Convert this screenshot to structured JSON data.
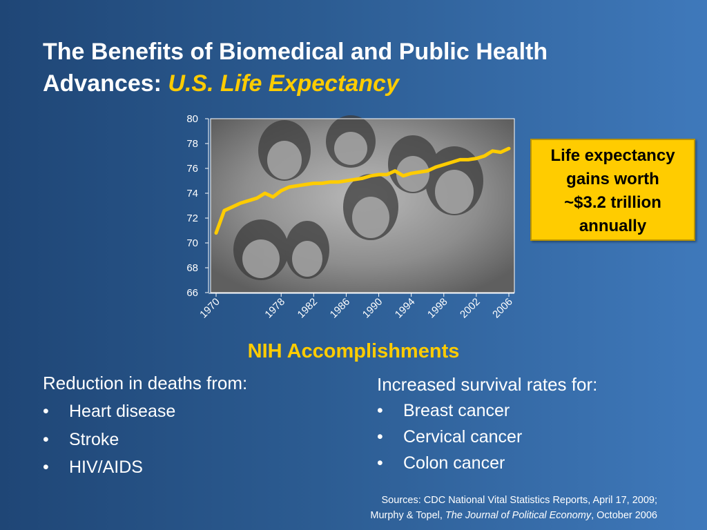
{
  "slide": {
    "title_line1": "The Benefits of Biomedical and Public Health",
    "title_line2_prefix": "Advances: ",
    "title_line2_highlight": "U.S. Life Expectancy"
  },
  "chart_data": {
    "type": "line",
    "title": "",
    "xlabel": "",
    "ylabel": "",
    "xlim": [
      1970,
      2006
    ],
    "ylim": [
      66,
      80
    ],
    "x_ticks": [
      "1970",
      "1978",
      "1982",
      "1986",
      "1990",
      "1994",
      "1998",
      "2002",
      "2006"
    ],
    "y_ticks": [
      "66",
      "68",
      "70",
      "72",
      "74",
      "76",
      "78",
      "80"
    ],
    "grid": false,
    "line_color": "#ffcc00",
    "background": "photograph of a smiling multigenerational family (grayscale)",
    "series": [
      {
        "name": "",
        "x": [
          1970,
          1971,
          1972,
          1973,
          1974,
          1975,
          1976,
          1977,
          1978,
          1979,
          1980,
          1981,
          1982,
          1983,
          1984,
          1985,
          1986,
          1987,
          1988,
          1989,
          1990,
          1991,
          1992,
          1993,
          1994,
          1995,
          1996,
          1997,
          1998,
          1999,
          2000,
          2001,
          2002,
          2003,
          2004,
          2005,
          2006
        ],
        "values": [
          70.8,
          72.6,
          72.9,
          73.2,
          73.4,
          73.6,
          74.0,
          73.7,
          74.2,
          74.5,
          74.6,
          74.7,
          74.8,
          74.8,
          74.9,
          74.9,
          75.0,
          75.1,
          75.2,
          75.4,
          75.5,
          75.5,
          75.8,
          75.4,
          75.6,
          75.7,
          75.8,
          76.1,
          76.3,
          76.5,
          76.7,
          76.7,
          76.8,
          77.0,
          77.4,
          77.3,
          77.6
        ]
      }
    ]
  },
  "callout": {
    "line1": "Life expectancy",
    "line2": "gains worth",
    "line3": "~$3.2 trillion",
    "line4": "annually"
  },
  "accomplishments": {
    "heading": "NIH Accomplishments",
    "left": {
      "heading": "Reduction in deaths from:",
      "items": [
        "Heart disease",
        "Stroke",
        "HIV/AIDS"
      ]
    },
    "right": {
      "heading": "Increased survival rates for:",
      "items": [
        "Breast cancer",
        "Cervical cancer",
        "Colon cancer"
      ]
    },
    "bullet": "•"
  },
  "sources": {
    "line1": "Sources: CDC National Vital Statistics Reports,  April 17, 2009;",
    "line2_prefix": "Murphy & Topel, ",
    "line2_italic": "The Journal of Political Economy",
    "line2_suffix": ", October 2006"
  }
}
